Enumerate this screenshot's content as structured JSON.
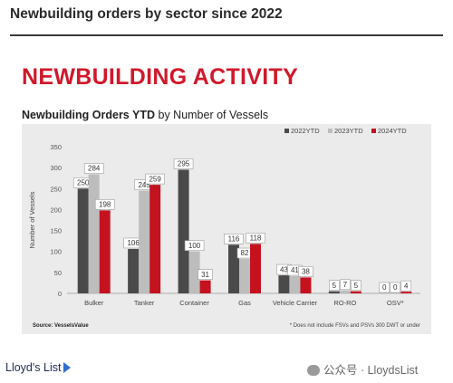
{
  "page": {
    "title": "Newbuilding orders by sector since 2022",
    "banner": "NEWBUILDING ACTIVITY",
    "footer_logo": "Lloyd's List",
    "footer_wechat": "公众号 · LloydsList"
  },
  "chart_data": {
    "type": "bar",
    "title_bold": "Newbuilding Orders YTD",
    "title_rest": " by Number of Vessels",
    "ylabel": "Number of Vessels",
    "ylim": [
      0,
      350
    ],
    "yticks": [
      0,
      50,
      100,
      150,
      200,
      250,
      300,
      350
    ],
    "categories": [
      "Bulker",
      "Tanker",
      "Container",
      "Gas",
      "Vehicle Carrier",
      "RO-RO",
      "OSV*"
    ],
    "series": [
      {
        "name": "2022YTD",
        "color": "#4a4a4a",
        "values": [
          250,
          106,
          295,
          116,
          43,
          5,
          0
        ]
      },
      {
        "name": "2023YTD",
        "color": "#bdbdbd",
        "values": [
          284,
          245,
          100,
          82,
          41,
          7,
          0
        ]
      },
      {
        "name": "2024YTD",
        "color": "#c4121f",
        "values": [
          198,
          259,
          31,
          118,
          38,
          5,
          4
        ]
      }
    ],
    "legend_position": "top-right",
    "source": "Source: VesselsValue",
    "footnote": "* Does not include FSVs and PSVs 300 DWT or under"
  }
}
